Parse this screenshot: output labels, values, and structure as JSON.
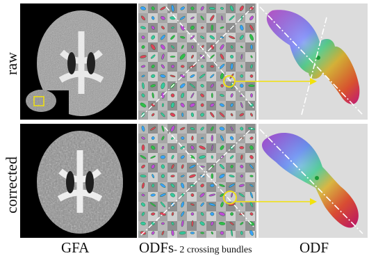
{
  "row_labels": {
    "top": "raw",
    "bottom": "corrected"
  },
  "column_labels": {
    "gfa": "GFA",
    "odfs_main": "ODFs",
    "odfs_sub": "- 2 crossing bundles",
    "odf": "ODF"
  },
  "colors": {
    "highlight": "#f2e20c",
    "fiber_line": "#ffffff",
    "odf_background": "#dcdcdc",
    "figure_background": "#ffffff"
  },
  "icons": {
    "arrow": "yellow-arrow-icon",
    "circle": "yellow-circle-icon"
  }
}
